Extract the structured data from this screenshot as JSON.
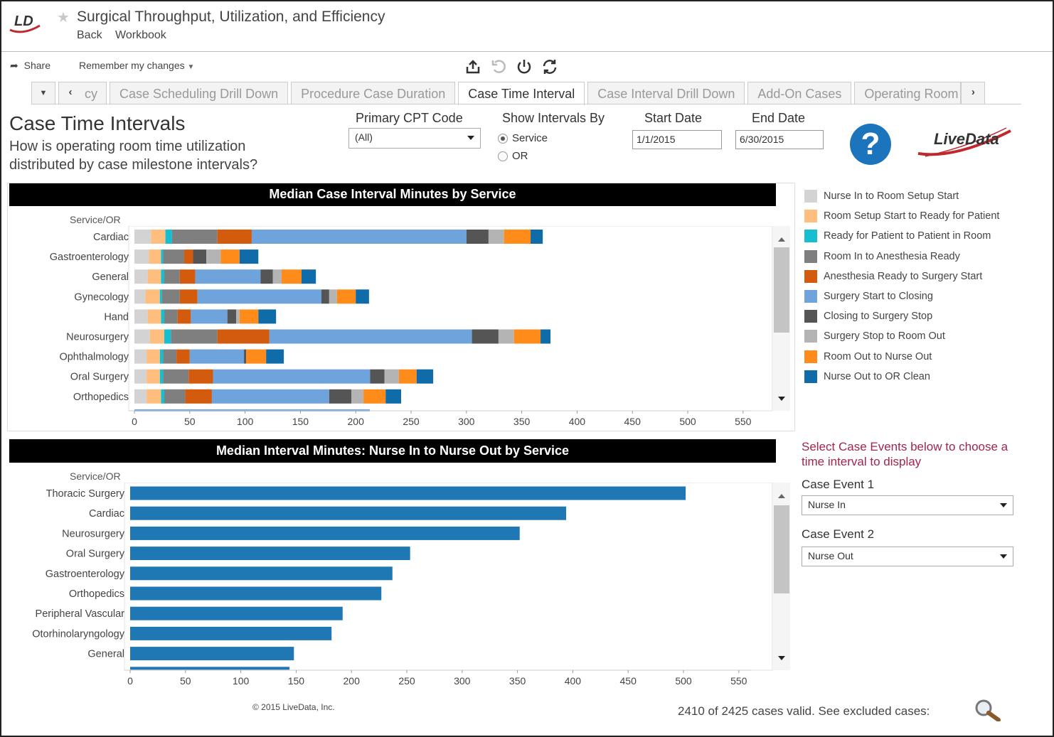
{
  "header": {
    "logo_text": "LD",
    "title": "Surgical Throughput, Utilization, and Efficiency",
    "back_label": "Back",
    "workbook_label": "Workbook"
  },
  "toolbar": {
    "share_label": "Share",
    "remember_label": "Remember my changes"
  },
  "tabs": [
    {
      "label": "cy",
      "active": false
    },
    {
      "label": "Case Scheduling Drill Down",
      "active": false
    },
    {
      "label": "Procedure Case Duration",
      "active": false
    },
    {
      "label": "Case Time Interval",
      "active": true
    },
    {
      "label": "Case Interval Drill Down",
      "active": false
    },
    {
      "label": "Add-On Cases",
      "active": false
    },
    {
      "label": "Operating Room",
      "active": false
    }
  ],
  "page": {
    "title": "Case Time Intervals",
    "subtitle": "How is operating room time utilization distributed by case milestone intervals?"
  },
  "filters": {
    "cpt_label": "Primary CPT Code",
    "cpt_value": "(All)",
    "intervals_label": "Show Intervals By",
    "intervals_options": [
      "Service",
      "OR"
    ],
    "intervals_selected": "Service",
    "start_label": "Start Date",
    "start_value": "1/1/2015",
    "end_label": "End Date",
    "end_value": "6/30/2015"
  },
  "brand": {
    "help_symbol": "?",
    "livedata_logo": "LiveData"
  },
  "legend_colors": [
    "#d3d3d3",
    "#ffbe7d",
    "#17becf",
    "#7f7f7f",
    "#d25b0e",
    "#6fa3dc",
    "#555555",
    "#b4b4b4",
    "#ff8c1a",
    "#0f6ca8"
  ],
  "legend": [
    "Nurse In to Room Setup Start",
    "Room Setup Start to Ready for Patient",
    "Ready for Patient to Patient in Room",
    "Room In to Anesthesia Ready",
    "Anesthesia Ready to Surgery Start",
    "Surgery Start to Closing",
    "Closing to Surgery Stop",
    "Surgery Stop to Room Out",
    "Room Out to Nurse Out",
    "Nurse Out to OR Clean"
  ],
  "chart_data": [
    {
      "type": "bar",
      "orientation": "horizontal",
      "stacked": true,
      "title": "Median Case Interval Minutes by Service",
      "ylabel": "Service/OR",
      "xlim": [
        0,
        550
      ],
      "xticks": [
        0,
        50,
        100,
        150,
        200,
        250,
        300,
        350,
        400,
        450,
        500,
        550
      ],
      "categories": [
        "Cardiac",
        "Gastroenterology",
        "General",
        "Gynecology",
        "Hand",
        "Neurosurgery",
        "Ophthalmology",
        "Oral Surgery",
        "Orthopedics"
      ],
      "series": [
        {
          "name": "Nurse In to Room Setup Start",
          "values": [
            15,
            13,
            12,
            10,
            12,
            14,
            11,
            11,
            11
          ]
        },
        {
          "name": "Room Setup Start to Ready for Patient",
          "values": [
            13,
            11,
            12,
            13,
            12,
            13,
            12,
            12,
            13
          ]
        },
        {
          "name": "Ready for Patient to Patient in Room",
          "values": [
            6,
            2,
            3,
            2,
            3,
            6,
            3,
            3,
            3
          ]
        },
        {
          "name": "Room In to Anesthesia Ready",
          "values": [
            41,
            19,
            14,
            16,
            12,
            42,
            12,
            23,
            19
          ]
        },
        {
          "name": "Anesthesia Ready to Surgery Start",
          "values": [
            31,
            8,
            14,
            16,
            12,
            47,
            12,
            22,
            24
          ]
        },
        {
          "name": "Surgery Start to Closing",
          "values": [
            194,
            0,
            59,
            112,
            33,
            183,
            49,
            142,
            106
          ]
        },
        {
          "name": "Closing to Surgery Stop",
          "values": [
            20,
            12,
            11,
            7,
            8,
            24,
            2,
            13,
            20
          ]
        },
        {
          "name": "Surgery Stop to Room Out",
          "values": [
            14,
            13,
            8,
            7,
            3,
            14,
            0,
            13,
            11
          ]
        },
        {
          "name": "Room Out to Nurse Out",
          "values": [
            24,
            17,
            18,
            17,
            17,
            24,
            18,
            16,
            20
          ]
        },
        {
          "name": "Nurse Out to OR Clean",
          "values": [
            11,
            17,
            13,
            12,
            16,
            9,
            16,
            15,
            14
          ]
        }
      ]
    },
    {
      "type": "bar",
      "orientation": "horizontal",
      "title": "Median Interval Minutes: Nurse In to Nurse Out by Service",
      "ylabel": "Service/OR",
      "xlim": [
        0,
        550
      ],
      "xticks": [
        0,
        50,
        100,
        150,
        200,
        250,
        300,
        350,
        400,
        450,
        500,
        550
      ],
      "categories": [
        "Thoracic Surgery",
        "Cardiac",
        "Neurosurgery",
        "Oral Surgery",
        "Gastroenterology",
        "Orthopedics",
        "Peripheral Vascular",
        "Otorhinolaryngology",
        "General"
      ],
      "values": [
        502,
        394,
        352,
        253,
        237,
        227,
        192,
        182,
        148
      ],
      "color": "#1f77b4"
    }
  ],
  "case_events": {
    "note": "Select Case Events below to choose a time interval to display",
    "event1_label": "Case Event 1",
    "event1_value": "Nurse In",
    "event2_label": "Case Event 2",
    "event2_value": "Nurse Out"
  },
  "footer": {
    "copyright": "© 2015 LiveData, Inc.",
    "valid_text": "2410 of 2425 cases valid. See excluded cases:"
  }
}
